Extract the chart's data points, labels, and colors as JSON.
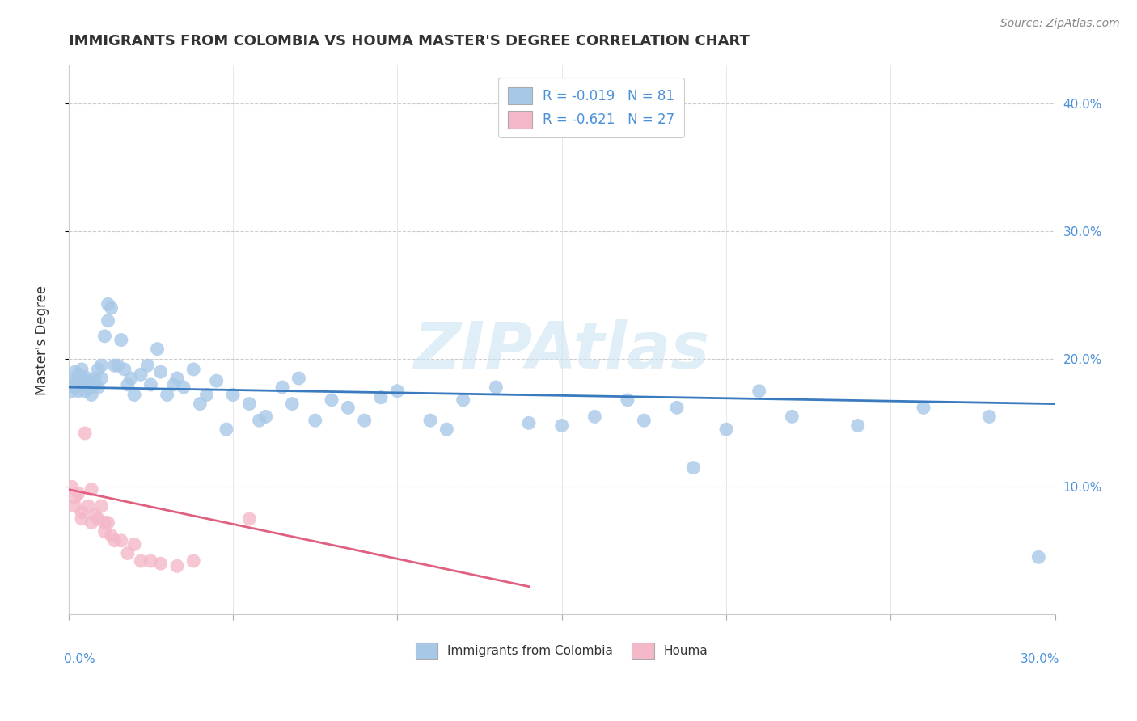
{
  "title": "IMMIGRANTS FROM COLOMBIA VS HOUMA MASTER'S DEGREE CORRELATION CHART",
  "source_text": "Source: ZipAtlas.com",
  "ylabel": "Master's Degree",
  "y_ticks": [
    0.1,
    0.2,
    0.3,
    0.4
  ],
  "y_tick_labels": [
    "10.0%",
    "20.0%",
    "30.0%",
    "40.0%"
  ],
  "x_lim": [
    0.0,
    0.3
  ],
  "y_lim": [
    0.0,
    0.43
  ],
  "blue_color": "#a8c8e8",
  "pink_color": "#f5b8c8",
  "blue_line_color": "#3a7abf",
  "pink_line_color": "#e06080",
  "legend_blue_label": "R = -0.019   N = 81",
  "legend_pink_label": "R = -0.621   N = 27",
  "legend_blue_face": "#a8c8e8",
  "legend_pink_face": "#f5b8c8",
  "watermark": "ZIPAtlas",
  "blue_x": [
    0.001,
    0.001,
    0.002,
    0.002,
    0.002,
    0.003,
    0.003,
    0.003,
    0.004,
    0.004,
    0.004,
    0.005,
    0.005,
    0.005,
    0.006,
    0.006,
    0.007,
    0.007,
    0.007,
    0.008,
    0.008,
    0.009,
    0.009,
    0.01,
    0.01,
    0.011,
    0.012,
    0.012,
    0.013,
    0.014,
    0.015,
    0.016,
    0.017,
    0.018,
    0.019,
    0.02,
    0.022,
    0.024,
    0.025,
    0.027,
    0.028,
    0.03,
    0.032,
    0.033,
    0.035,
    0.038,
    0.04,
    0.042,
    0.045,
    0.048,
    0.05,
    0.055,
    0.058,
    0.06,
    0.065,
    0.068,
    0.07,
    0.075,
    0.08,
    0.085,
    0.09,
    0.095,
    0.1,
    0.11,
    0.115,
    0.12,
    0.13,
    0.14,
    0.15,
    0.16,
    0.17,
    0.175,
    0.185,
    0.19,
    0.2,
    0.21,
    0.22,
    0.24,
    0.26,
    0.28,
    0.295
  ],
  "blue_y": [
    0.18,
    0.175,
    0.183,
    0.19,
    0.178,
    0.182,
    0.188,
    0.175,
    0.18,
    0.185,
    0.192,
    0.175,
    0.183,
    0.186,
    0.178,
    0.182,
    0.178,
    0.183,
    0.172,
    0.185,
    0.18,
    0.192,
    0.178,
    0.195,
    0.185,
    0.218,
    0.23,
    0.243,
    0.24,
    0.195,
    0.195,
    0.215,
    0.192,
    0.18,
    0.185,
    0.172,
    0.188,
    0.195,
    0.18,
    0.208,
    0.19,
    0.172,
    0.18,
    0.185,
    0.178,
    0.192,
    0.165,
    0.172,
    0.183,
    0.145,
    0.172,
    0.165,
    0.152,
    0.155,
    0.178,
    0.165,
    0.185,
    0.152,
    0.168,
    0.162,
    0.152,
    0.17,
    0.175,
    0.152,
    0.145,
    0.168,
    0.178,
    0.15,
    0.148,
    0.155,
    0.168,
    0.152,
    0.162,
    0.115,
    0.145,
    0.175,
    0.155,
    0.148,
    0.162,
    0.155,
    0.045
  ],
  "pink_x": [
    0.001,
    0.002,
    0.002,
    0.003,
    0.004,
    0.004,
    0.005,
    0.006,
    0.007,
    0.007,
    0.008,
    0.009,
    0.01,
    0.011,
    0.011,
    0.012,
    0.013,
    0.014,
    0.016,
    0.018,
    0.02,
    0.022,
    0.025,
    0.028,
    0.033,
    0.038,
    0.055
  ],
  "pink_y": [
    0.1,
    0.092,
    0.085,
    0.095,
    0.08,
    0.075,
    0.142,
    0.085,
    0.098,
    0.072,
    0.078,
    0.075,
    0.085,
    0.072,
    0.065,
    0.072,
    0.062,
    0.058,
    0.058,
    0.048,
    0.055,
    0.042,
    0.042,
    0.04,
    0.038,
    0.042,
    0.075
  ],
  "blue_trend_x": [
    0.0,
    0.3
  ],
  "blue_trend_y": [
    0.178,
    0.165
  ],
  "pink_trend_x": [
    0.0,
    0.14
  ],
  "pink_trend_y": [
    0.098,
    0.022
  ]
}
